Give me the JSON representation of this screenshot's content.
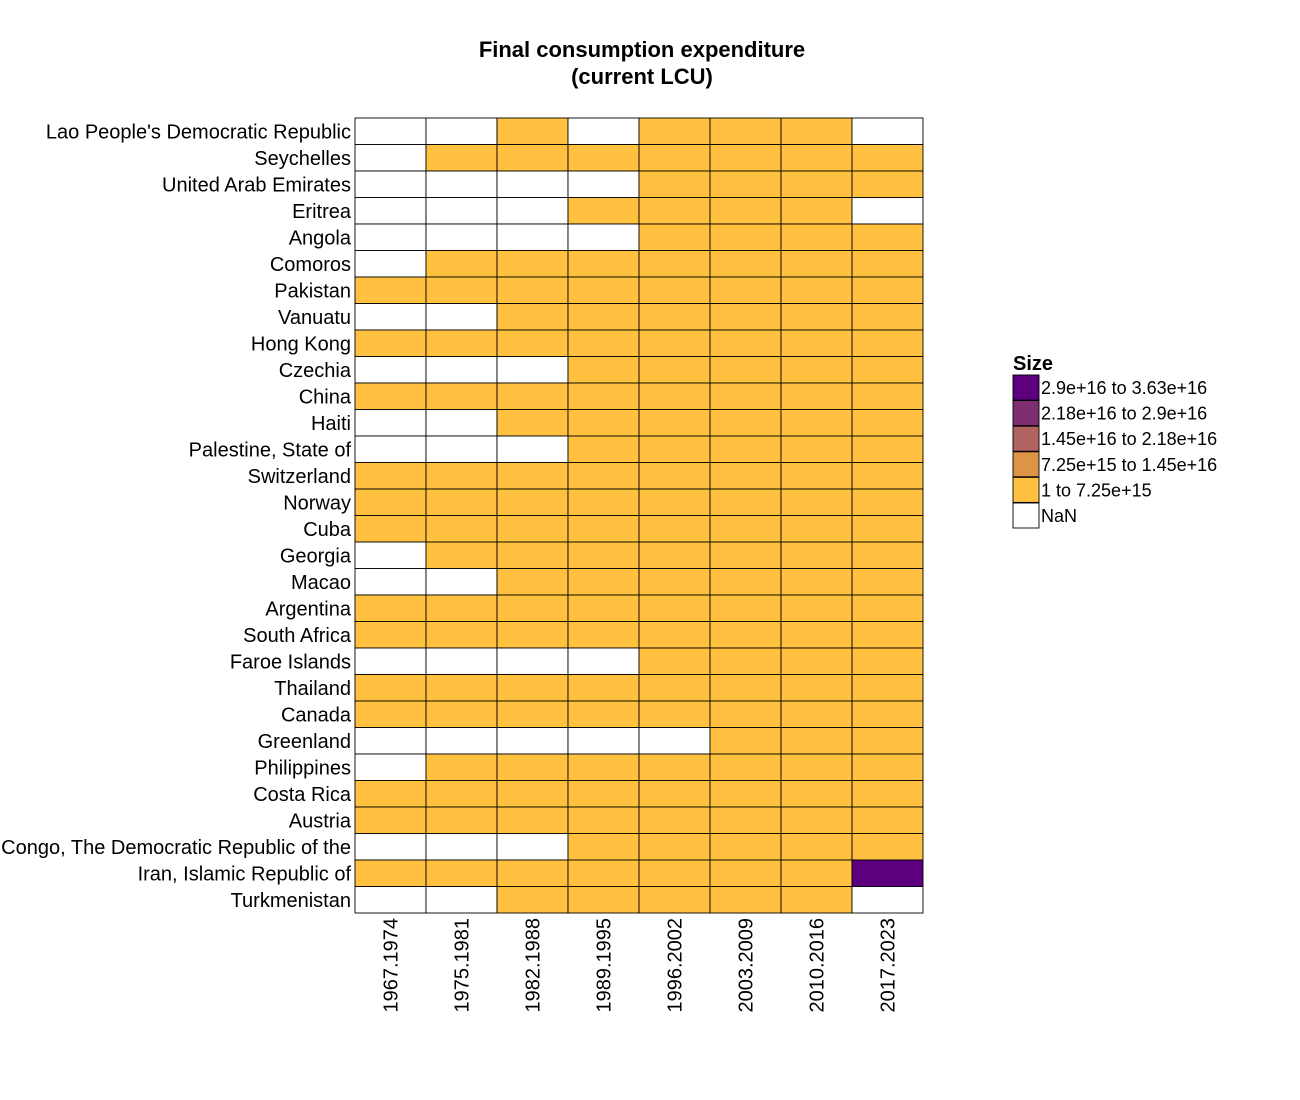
{
  "chart_data": {
    "type": "heatmap",
    "title": [
      "Final consumption expenditure",
      "(current LCU)"
    ],
    "x_categories": [
      "1967.1974",
      "1975.1981",
      "1982.1988",
      "1989.1995",
      "1996.2002",
      "2003.2009",
      "2010.2016",
      "2017.2023"
    ],
    "y_categories": [
      "Lao People's Democratic Republic",
      "Seychelles",
      "United Arab Emirates",
      "Eritrea",
      "Angola",
      "Comoros",
      "Pakistan",
      "Vanuatu",
      "Hong Kong",
      "Czechia",
      "China",
      "Haiti",
      "Palestine, State of",
      "Switzerland",
      "Norway",
      "Cuba",
      "Georgia",
      "Macao",
      "Argentina",
      "South Africa",
      "Faroe Islands",
      "Thailand",
      "Canada",
      "Greenland",
      "Philippines",
      "Costa Rica",
      "Austria",
      "Congo, The Democratic Republic of the",
      "Iran, Islamic Republic of",
      "Turkmenistan"
    ],
    "cells": [
      [
        0,
        0,
        1,
        0,
        1,
        1,
        1,
        0
      ],
      [
        0,
        1,
        1,
        1,
        1,
        1,
        1,
        1
      ],
      [
        0,
        0,
        0,
        0,
        1,
        1,
        1,
        1
      ],
      [
        0,
        0,
        0,
        1,
        1,
        1,
        1,
        0
      ],
      [
        0,
        0,
        0,
        0,
        1,
        1,
        1,
        1
      ],
      [
        0,
        1,
        1,
        1,
        1,
        1,
        1,
        1
      ],
      [
        1,
        1,
        1,
        1,
        1,
        1,
        1,
        1
      ],
      [
        0,
        0,
        1,
        1,
        1,
        1,
        1,
        1
      ],
      [
        1,
        1,
        1,
        1,
        1,
        1,
        1,
        1
      ],
      [
        0,
        0,
        0,
        1,
        1,
        1,
        1,
        1
      ],
      [
        1,
        1,
        1,
        1,
        1,
        1,
        1,
        1
      ],
      [
        0,
        0,
        1,
        1,
        1,
        1,
        1,
        1
      ],
      [
        0,
        0,
        0,
        1,
        1,
        1,
        1,
        1
      ],
      [
        1,
        1,
        1,
        1,
        1,
        1,
        1,
        1
      ],
      [
        1,
        1,
        1,
        1,
        1,
        1,
        1,
        1
      ],
      [
        1,
        1,
        1,
        1,
        1,
        1,
        1,
        1
      ],
      [
        0,
        1,
        1,
        1,
        1,
        1,
        1,
        1
      ],
      [
        0,
        0,
        1,
        1,
        1,
        1,
        1,
        1
      ],
      [
        1,
        1,
        1,
        1,
        1,
        1,
        1,
        1
      ],
      [
        1,
        1,
        1,
        1,
        1,
        1,
        1,
        1
      ],
      [
        0,
        0,
        0,
        0,
        1,
        1,
        1,
        1
      ],
      [
        1,
        1,
        1,
        1,
        1,
        1,
        1,
        1
      ],
      [
        1,
        1,
        1,
        1,
        1,
        1,
        1,
        1
      ],
      [
        0,
        0,
        0,
        0,
        0,
        1,
        1,
        1
      ],
      [
        0,
        1,
        1,
        1,
        1,
        1,
        1,
        1
      ],
      [
        1,
        1,
        1,
        1,
        1,
        1,
        1,
        1
      ],
      [
        1,
        1,
        1,
        1,
        1,
        1,
        1,
        1
      ],
      [
        0,
        0,
        0,
        1,
        1,
        1,
        1,
        1
      ],
      [
        1,
        1,
        1,
        1,
        1,
        1,
        1,
        5
      ],
      [
        0,
        0,
        1,
        1,
        1,
        1,
        1,
        0
      ]
    ],
    "cell_code_meaning": "0 = NaN, 1..5 = legend bin index from lowest to highest",
    "legend": {
      "title": "Size",
      "placement": "right",
      "bins": [
        {
          "label": "2.9e+16 to 3.63e+16",
          "color": "#5c0080",
          "code": 5
        },
        {
          "label": "2.18e+16 to 2.9e+16",
          "color": "#7e2f6f",
          "code": 4
        },
        {
          "label": "1.45e+16 to 2.18e+16",
          "color": "#b06361",
          "code": 3
        },
        {
          "label": "7.25e+15 to 1.45e+16",
          "color": "#de9447",
          "code": 2
        },
        {
          "label": "1 to 7.25e+15",
          "color": "#ffc13f",
          "code": 1
        },
        {
          "label": "NaN",
          "color": "#ffffff",
          "code": 0
        }
      ]
    },
    "grid": false
  }
}
